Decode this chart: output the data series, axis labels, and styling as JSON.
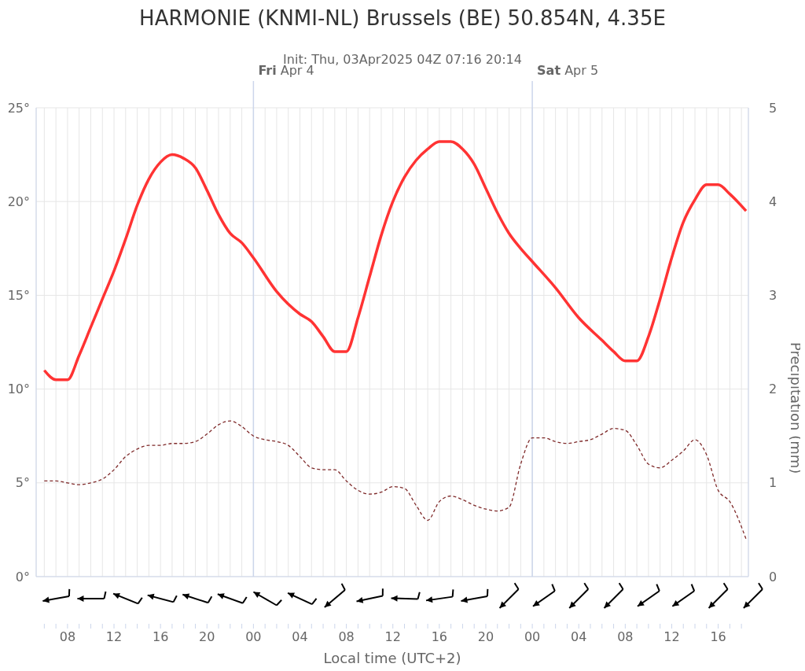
{
  "chart_data": {
    "type": "line",
    "title": "HARMONIE (KNMI-NL) Brussels (BE) 50.854N, 4.35E",
    "subtitle": "Init: Thu, 03Apr2025 04Z 07:16 20:14",
    "xlabel": "Local time (UTC+2)",
    "y2label": "Precipitation (mm)",
    "series": [
      {
        "color": "#ff3333",
        "line_style": "solid",
        "x": [
          6,
          7,
          8,
          9,
          10,
          11,
          12,
          13,
          14,
          15,
          16,
          17,
          18,
          19,
          20,
          21,
          22,
          23,
          24,
          26,
          28,
          29,
          30,
          31,
          32,
          33,
          34,
          35,
          36,
          37,
          38,
          39,
          40,
          41,
          42,
          43,
          44,
          45,
          46,
          47,
          48,
          50,
          52,
          54,
          55,
          56,
          57,
          58,
          59,
          60,
          61,
          62,
          63,
          64,
          65,
          66.4
        ],
        "values": [
          11.0,
          10.5,
          10.5,
          11.8,
          13.3,
          14.8,
          16.3,
          18.0,
          19.8,
          21.2,
          22.1,
          22.5,
          22.3,
          21.8,
          20.6,
          19.3,
          18.3,
          17.8,
          17.0,
          15.2,
          14.0,
          13.6,
          12.8,
          12.0,
          12.0,
          13.8,
          16.0,
          18.2,
          20.0,
          21.3,
          22.2,
          22.8,
          23.2,
          23.2,
          22.8,
          22.0,
          20.7,
          19.4,
          18.3,
          17.5,
          16.8,
          15.4,
          13.8,
          12.6,
          12.0,
          11.5,
          11.5,
          12.8,
          14.8,
          17.0,
          18.9,
          20.1,
          20.9,
          20.9,
          20.4,
          19.5
        ]
      },
      {
        "color": "#7f2a2a",
        "line_style": "dashed",
        "x": [
          6,
          7,
          8,
          9,
          10,
          11,
          12,
          13,
          14,
          15,
          16,
          17,
          18,
          19,
          20,
          21,
          22,
          23,
          24,
          25,
          26,
          27,
          28,
          29,
          30,
          31,
          32,
          33,
          34,
          35,
          36,
          37,
          38,
          39,
          40,
          41,
          42,
          43,
          44,
          45,
          46,
          47,
          48,
          49,
          50,
          51,
          52,
          53,
          54,
          55,
          56,
          57,
          58,
          59,
          60,
          61,
          62,
          63,
          64,
          65,
          66.4
        ],
        "values": [
          5.1,
          5.1,
          5.0,
          4.9,
          5.0,
          5.2,
          5.7,
          6.4,
          6.8,
          7.0,
          7.0,
          7.1,
          7.1,
          7.2,
          7.6,
          8.1,
          8.3,
          8.0,
          7.5,
          7.3,
          7.2,
          7.0,
          6.4,
          5.8,
          5.7,
          5.7,
          5.1,
          4.6,
          4.4,
          4.5,
          4.8,
          4.7,
          3.8,
          3.0,
          4.0,
          4.3,
          4.1,
          3.8,
          3.6,
          3.5,
          3.7,
          6.0,
          7.4,
          7.4,
          7.2,
          7.1,
          7.2,
          7.3,
          7.6,
          7.9,
          7.8,
          7.0,
          6.0,
          5.8,
          6.2,
          6.7,
          7.3,
          6.5,
          4.6,
          4.0,
          2.0
        ]
      }
    ],
    "xlim": [
      5.3,
      66.6
    ],
    "xticks": [
      {
        "value": 6,
        "label": null
      },
      {
        "value": 7,
        "label": null
      },
      {
        "value": 8,
        "label": "08"
      },
      {
        "value": 9,
        "label": null
      },
      {
        "value": 10,
        "label": null
      },
      {
        "value": 11,
        "label": null
      },
      {
        "value": 12,
        "label": "12"
      },
      {
        "value": 13,
        "label": null
      },
      {
        "value": 14,
        "label": null
      },
      {
        "value": 15,
        "label": null
      },
      {
        "value": 16,
        "label": "16"
      },
      {
        "value": 17,
        "label": null
      },
      {
        "value": 18,
        "label": null
      },
      {
        "value": 19,
        "label": null
      },
      {
        "value": 20,
        "label": "20"
      },
      {
        "value": 21,
        "label": null
      },
      {
        "value": 22,
        "label": null
      },
      {
        "value": 23,
        "label": null
      },
      {
        "value": 24,
        "label": "00"
      },
      {
        "value": 25,
        "label": null
      },
      {
        "value": 26,
        "label": null
      },
      {
        "value": 27,
        "label": null
      },
      {
        "value": 28,
        "label": "04"
      },
      {
        "value": 29,
        "label": null
      },
      {
        "value": 30,
        "label": null
      },
      {
        "value": 31,
        "label": null
      },
      {
        "value": 32,
        "label": "08"
      },
      {
        "value": 33,
        "label": null
      },
      {
        "value": 34,
        "label": null
      },
      {
        "value": 35,
        "label": null
      },
      {
        "value": 36,
        "label": "12"
      },
      {
        "value": 37,
        "label": null
      },
      {
        "value": 38,
        "label": null
      },
      {
        "value": 39,
        "label": null
      },
      {
        "value": 40,
        "label": "16"
      },
      {
        "value": 41,
        "label": null
      },
      {
        "value": 42,
        "label": null
      },
      {
        "value": 43,
        "label": null
      },
      {
        "value": 44,
        "label": "20"
      },
      {
        "value": 45,
        "label": null
      },
      {
        "value": 46,
        "label": null
      },
      {
        "value": 47,
        "label": null
      },
      {
        "value": 48,
        "label": "00"
      },
      {
        "value": 49,
        "label": null
      },
      {
        "value": 50,
        "label": null
      },
      {
        "value": 51,
        "label": null
      },
      {
        "value": 52,
        "label": "04"
      },
      {
        "value": 53,
        "label": null
      },
      {
        "value": 54,
        "label": null
      },
      {
        "value": 55,
        "label": null
      },
      {
        "value": 56,
        "label": "08"
      },
      {
        "value": 57,
        "label": null
      },
      {
        "value": 58,
        "label": null
      },
      {
        "value": 59,
        "label": null
      },
      {
        "value": 60,
        "label": "12"
      },
      {
        "value": 61,
        "label": null
      },
      {
        "value": 62,
        "label": null
      },
      {
        "value": 63,
        "label": null
      },
      {
        "value": 64,
        "label": "16"
      },
      {
        "value": 65,
        "label": null
      },
      {
        "value": 66,
        "label": null
      }
    ],
    "ylim": [
      0,
      25
    ],
    "yticks": [
      {
        "value": 0,
        "label": "0°"
      },
      {
        "value": 5,
        "label": "5°"
      },
      {
        "value": 10,
        "label": "10°"
      },
      {
        "value": 15,
        "label": "15°"
      },
      {
        "value": 20,
        "label": "20°"
      },
      {
        "value": 25,
        "label": "25°"
      }
    ],
    "y2lim": [
      0,
      5
    ],
    "y2ticks": [
      0,
      1,
      2,
      3,
      4,
      5
    ],
    "ref_lines": [
      {
        "axis": "x",
        "value": 24,
        "label": "Fri Apr 4",
        "color": "#ccd6eb"
      },
      {
        "axis": "x",
        "value": 48,
        "label": "Sat Apr 5",
        "color": "#ccd6eb"
      }
    ],
    "grid": true,
    "marker": "none"
  }
}
